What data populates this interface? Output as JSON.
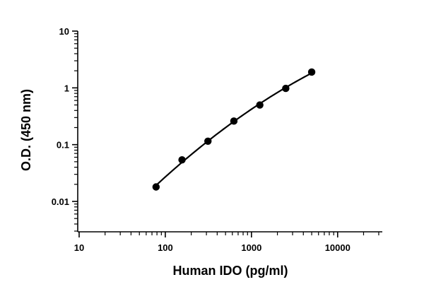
{
  "chart_data": {
    "type": "scatter",
    "title": "",
    "xlabel": "Human IDO (pg/ml)",
    "ylabel": "O.D. (450 nm)",
    "x_scale": "log",
    "y_scale": "log",
    "xlim": [
      10,
      33000
    ],
    "ylim": [
      0.003,
      10
    ],
    "x_ticks": [
      {
        "value": 10,
        "label": "10"
      },
      {
        "value": 100,
        "label": "100"
      },
      {
        "value": 1000,
        "label": "1000"
      },
      {
        "value": 10000,
        "label": "10000"
      }
    ],
    "y_ticks": [
      {
        "value": 10,
        "label": "10"
      },
      {
        "value": 1,
        "label": "1"
      },
      {
        "value": 0.1,
        "label": "0.1"
      },
      {
        "value": 0.01,
        "label": "0.01"
      }
    ],
    "grid": false,
    "legend": "none",
    "series": [
      {
        "x": [
          78.1,
          156.3,
          312.5,
          625,
          1250,
          2500,
          5000
        ],
        "y": [
          0.018,
          0.054,
          0.115,
          0.26,
          0.5,
          0.98,
          1.9
        ],
        "marker": "circle",
        "fit_line": true,
        "color": "#000000"
      }
    ]
  }
}
